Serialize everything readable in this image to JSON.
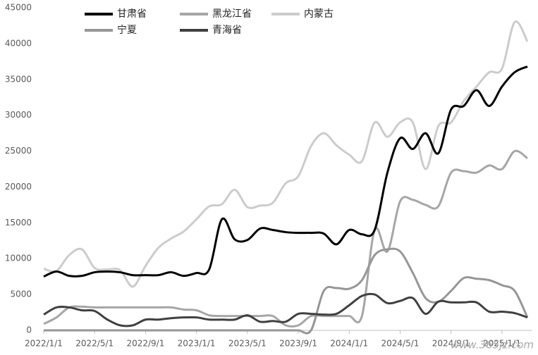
{
  "chart_data": {
    "type": "line",
    "categories": [
      "2022/1/1",
      null,
      null,
      null,
      "2022/5/1",
      null,
      null,
      null,
      "2022/9/1",
      null,
      null,
      null,
      "2023/1/1",
      null,
      null,
      null,
      "2023/5/1",
      null,
      null,
      null,
      "2023/9/1",
      null,
      null,
      null,
      "2024/1/1",
      null,
      null,
      null,
      "2024/5/1",
      null,
      null,
      null,
      "2024/9/1",
      null,
      null,
      null,
      "2025/1/1",
      null,
      null
    ],
    "series": [
      {
        "name": "甘肃省",
        "color": "#000000",
        "values": [
          7500,
          8200,
          7600,
          7600,
          8100,
          8200,
          8100,
          7700,
          7700,
          7700,
          8100,
          7600,
          8000,
          8500,
          15500,
          12700,
          12600,
          14200,
          14000,
          13700,
          13600,
          13600,
          13500,
          12000,
          14000,
          13400,
          14000,
          22000,
          26800,
          25300,
          27500,
          24700,
          30800,
          31300,
          33500,
          31300,
          34000,
          36000,
          36800
        ]
      },
      {
        "name": "黑龙江省",
        "color": "#a6a6a6",
        "values": [
          900,
          1800,
          3200,
          3300,
          3200,
          3200,
          3200,
          3200,
          3200,
          3200,
          3200,
          2900,
          2800,
          2100,
          2000,
          2000,
          2000,
          2000,
          2000,
          700,
          700,
          2000,
          2000,
          2000,
          2000,
          2000,
          14000,
          11000,
          18000,
          18200,
          17500,
          17300,
          22000,
          22200,
          22000,
          23000,
          22500,
          25000,
          24000
        ]
      },
      {
        "name": "内蒙古",
        "color": "#cccccc",
        "values": [
          8600,
          8300,
          10500,
          11300,
          8700,
          8500,
          8400,
          6100,
          9000,
          11500,
          12800,
          13800,
          15500,
          17300,
          17600,
          19600,
          17200,
          17400,
          17800,
          20500,
          21500,
          25700,
          27500,
          25800,
          24500,
          23600,
          29000,
          27000,
          29000,
          29000,
          22500,
          28500,
          29000,
          32000,
          34000,
          36000,
          36500,
          43000,
          40300
        ]
      },
      {
        "name": "宁夏",
        "color": "#969696",
        "values": [
          0,
          0,
          0,
          0,
          0,
          0,
          0,
          0,
          0,
          0,
          0,
          0,
          0,
          0,
          0,
          0,
          0,
          0,
          0,
          0,
          0,
          0,
          5500,
          5900,
          5800,
          7000,
          10500,
          11300,
          11000,
          8000,
          4500,
          4000,
          5500,
          7300,
          7200,
          7000,
          6300,
          5500,
          1800
        ]
      },
      {
        "name": "青海省",
        "color": "#404040",
        "values": [
          2200,
          3200,
          3200,
          2800,
          2700,
          1500,
          700,
          700,
          1500,
          1500,
          1700,
          1800,
          1800,
          1500,
          1500,
          1500,
          2100,
          1200,
          1300,
          1200,
          2300,
          2300,
          2200,
          2300,
          3500,
          4800,
          5000,
          3800,
          4100,
          4500,
          2300,
          4000,
          3900,
          3900,
          3900,
          2600,
          2600,
          2400,
          1800
        ]
      }
    ],
    "ylim": [
      0,
      45000
    ],
    "yticks": [
      0,
      5000,
      10000,
      15000,
      20000,
      25000,
      30000,
      35000,
      40000,
      45000
    ],
    "grid": false,
    "legend": "top",
    "watermark": "www.365jz.com"
  }
}
